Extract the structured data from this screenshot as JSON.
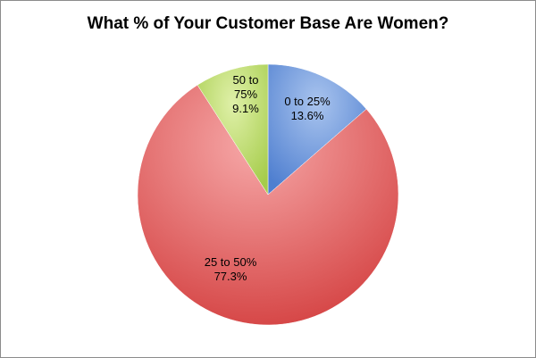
{
  "chart_data": {
    "type": "pie",
    "title": "What % of Your Customer Base Are Women?",
    "slices": [
      {
        "name": "0 to 25%",
        "value": 13.6,
        "label_lines": [
          "0 to 25%",
          "13.6%"
        ],
        "color": "#7ea6e0"
      },
      {
        "name": "25 to 50%",
        "value": 77.3,
        "label_lines": [
          "25 to 50%",
          "77.3%"
        ],
        "color": "#e06666"
      },
      {
        "name": "50 to 75%",
        "value": 9.1,
        "label_lines": [
          "50 to",
          "75%",
          "9.1%"
        ],
        "color": "#b7d96a"
      }
    ],
    "start_angle_deg": 0,
    "direction": "clockwise",
    "legend": "none"
  }
}
